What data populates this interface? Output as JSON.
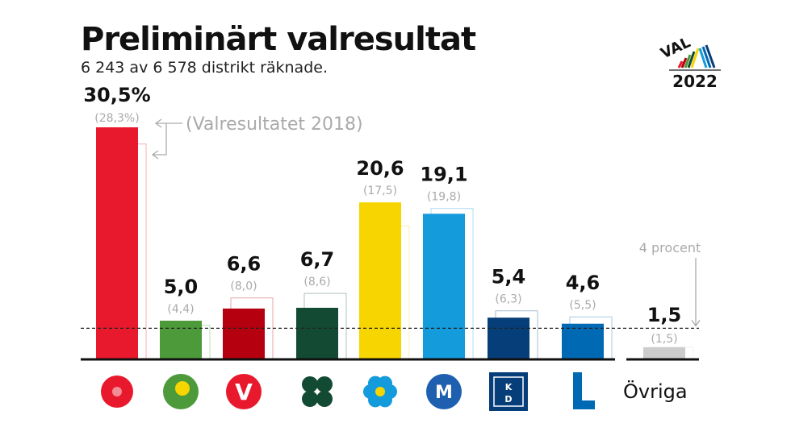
{
  "title": "Preliminärt valresultat",
  "subtitle": "6 243 av 6 578 distrikt räknade.",
  "logo": {
    "text": "VAL",
    "year": "2022"
  },
  "chart_data": {
    "type": "bar",
    "categories": [
      "S",
      "C",
      "V",
      "MP",
      "SD",
      "M",
      "KD",
      "L",
      "Övriga"
    ],
    "series": [
      {
        "name": "2022",
        "values": [
          30.5,
          5.0,
          6.6,
          6.7,
          20.6,
          19.1,
          5.4,
          4.6,
          1.5
        ]
      },
      {
        "name": "2018",
        "values": [
          28.3,
          4.4,
          8.0,
          8.6,
          17.5,
          19.8,
          6.3,
          5.5,
          1.5
        ]
      }
    ],
    "value_labels": [
      "30,5%",
      "5,0",
      "6,6",
      "6,7",
      "20,6",
      "19,1",
      "5,4",
      "4,6",
      "1,5"
    ],
    "prev_labels": [
      "(28,3%)",
      "(4,4)",
      "(8,0)",
      "(8,6)",
      "(17,5)",
      "(19,8)",
      "(6,3)",
      "(5,5)",
      "(1,5)"
    ],
    "colors": [
      "#e8192c",
      "#4c9a3a",
      "#b5000f",
      "#134a33",
      "#f7d501",
      "#149bdc",
      "#063e79",
      "#0069b4",
      "#cccccc"
    ],
    "annotation_2018": "(Valresultatet 2018)",
    "threshold": {
      "value": 4,
      "label": "4 procent"
    },
    "other_label": "Övriga",
    "ylim": [
      0,
      31
    ]
  }
}
